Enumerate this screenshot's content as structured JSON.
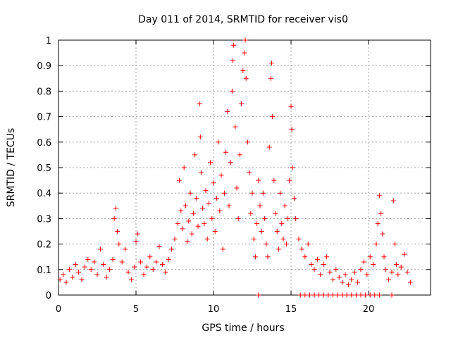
{
  "chart_data": {
    "type": "scatter",
    "title": "Day 011 of 2014, SRMTID for receiver vis0",
    "xlabel": "GPS time / hours",
    "ylabel": "SRMTID / TECUs",
    "xlim": [
      0,
      24
    ],
    "ylim": [
      0,
      1
    ],
    "x_ticks": [
      0,
      5,
      10,
      15,
      20
    ],
    "y_ticks": [
      0,
      0.1,
      0.2,
      0.3,
      0.4,
      0.5,
      0.6,
      0.7,
      0.8,
      0.9,
      1
    ],
    "x_tick_labels": [
      "0",
      "5",
      "10",
      "15",
      "20"
    ],
    "y_tick_labels": [
      "0",
      "0.1",
      "0.2",
      "0.3",
      "0.4",
      "0.5",
      "0.6",
      "0.7",
      "0.8",
      "0.9",
      "1"
    ],
    "grid": true,
    "marker": "+",
    "color": "#ff0000",
    "series": [
      {
        "name": "SRMTID",
        "points": [
          [
            0.1,
            0.06
          ],
          [
            0.3,
            0.08
          ],
          [
            0.5,
            0.05
          ],
          [
            0.7,
            0.1
          ],
          [
            0.9,
            0.07
          ],
          [
            1.1,
            0.12
          ],
          [
            1.3,
            0.09
          ],
          [
            1.5,
            0.06
          ],
          [
            1.7,
            0.11
          ],
          [
            1.9,
            0.14
          ],
          [
            2.1,
            0.1
          ],
          [
            2.3,
            0.13
          ],
          [
            2.5,
            0.08
          ],
          [
            2.7,
            0.18
          ],
          [
            2.9,
            0.12
          ],
          [
            3.1,
            0.07
          ],
          [
            3.3,
            0.1
          ],
          [
            3.5,
            0.14
          ],
          [
            3.6,
            0.3
          ],
          [
            3.7,
            0.34
          ],
          [
            3.8,
            0.25
          ],
          [
            3.9,
            0.2
          ],
          [
            4.1,
            0.13
          ],
          [
            4.3,
            0.18
          ],
          [
            4.5,
            0.09
          ],
          [
            4.7,
            0.06
          ],
          [
            4.9,
            0.11
          ],
          [
            5.0,
            0.21
          ],
          [
            5.1,
            0.24
          ],
          [
            5.3,
            0.13
          ],
          [
            5.5,
            0.08
          ],
          [
            5.7,
            0.11
          ],
          [
            5.9,
            0.15
          ],
          [
            6.1,
            0.1
          ],
          [
            6.3,
            0.13
          ],
          [
            6.5,
            0.19
          ],
          [
            6.7,
            0.12
          ],
          [
            6.9,
            0.09
          ],
          [
            7.1,
            0.14
          ],
          [
            7.3,
            0.18
          ],
          [
            7.5,
            0.22
          ],
          [
            7.7,
            0.28
          ],
          [
            7.8,
            0.45
          ],
          [
            7.9,
            0.33
          ],
          [
            8.0,
            0.26
          ],
          [
            8.1,
            0.5
          ],
          [
            8.2,
            0.35
          ],
          [
            8.3,
            0.21
          ],
          [
            8.4,
            0.29
          ],
          [
            8.5,
            0.4
          ],
          [
            8.6,
            0.24
          ],
          [
            8.7,
            0.32
          ],
          [
            8.8,
            0.55
          ],
          [
            8.9,
            0.38
          ],
          [
            9.0,
            0.27
          ],
          [
            9.1,
            0.75
          ],
          [
            9.15,
            0.62
          ],
          [
            9.2,
            0.48
          ],
          [
            9.3,
            0.34
          ],
          [
            9.4,
            0.28
          ],
          [
            9.5,
            0.41
          ],
          [
            9.6,
            0.22
          ],
          [
            9.7,
            0.36
          ],
          [
            9.8,
            0.52
          ],
          [
            9.9,
            0.3
          ],
          [
            10.0,
            0.44
          ],
          [
            10.1,
            0.25
          ],
          [
            10.2,
            0.38
          ],
          [
            10.3,
            0.6
          ],
          [
            10.4,
            0.33
          ],
          [
            10.5,
            0.47
          ],
          [
            10.6,
            0.18
          ],
          [
            10.7,
            0.4
          ],
          [
            10.8,
            0.56
          ],
          [
            10.9,
            0.72
          ],
          [
            11.0,
            0.35
          ],
          [
            11.1,
            0.52
          ],
          [
            11.2,
            0.8
          ],
          [
            11.25,
            0.92
          ],
          [
            11.3,
            0.98
          ],
          [
            11.4,
            0.66
          ],
          [
            11.5,
            0.42
          ],
          [
            11.6,
            0.3
          ],
          [
            11.7,
            0.55
          ],
          [
            11.8,
            0.75
          ],
          [
            11.9,
            0.88
          ],
          [
            12.0,
            0.95
          ],
          [
            12.05,
            1.0
          ],
          [
            12.1,
            0.85
          ],
          [
            12.2,
            0.6
          ],
          [
            12.3,
            0.48
          ],
          [
            12.4,
            0.32
          ],
          [
            12.5,
            0.4
          ],
          [
            12.6,
            0.22
          ],
          [
            12.7,
            0.15
          ],
          [
            12.8,
            0.28
          ],
          [
            12.9,
            0.45
          ],
          [
            13.0,
            0.35
          ],
          [
            13.1,
            0.25
          ],
          [
            13.2,
            0.4
          ],
          [
            13.3,
            0.3
          ],
          [
            13.4,
            0.2
          ],
          [
            13.5,
            0.15
          ],
          [
            13.6,
            0.58
          ],
          [
            13.7,
            0.85
          ],
          [
            13.75,
            0.91
          ],
          [
            13.8,
            0.7
          ],
          [
            13.9,
            0.45
          ],
          [
            14.0,
            0.32
          ],
          [
            14.1,
            0.25
          ],
          [
            14.2,
            0.18
          ],
          [
            14.3,
            0.4
          ],
          [
            14.4,
            0.28
          ],
          [
            14.5,
            0.22
          ],
          [
            14.6,
            0.35
          ],
          [
            14.7,
            0.2
          ],
          [
            14.8,
            0.3
          ],
          [
            14.9,
            0.45
          ],
          [
            15.0,
            0.74
          ],
          [
            15.05,
            0.65
          ],
          [
            15.1,
            0.5
          ],
          [
            15.2,
            0.38
          ],
          [
            15.3,
            0.3
          ],
          [
            15.5,
            0.22
          ],
          [
            15.7,
            0.18
          ],
          [
            15.9,
            0.15
          ],
          [
            16.1,
            0.2
          ],
          [
            16.3,
            0.12
          ],
          [
            16.5,
            0.1
          ],
          [
            16.7,
            0.14
          ],
          [
            16.9,
            0.08
          ],
          [
            17.1,
            0.12
          ],
          [
            17.3,
            0.15
          ],
          [
            17.5,
            0.09
          ],
          [
            17.7,
            0.06
          ],
          [
            17.9,
            0.1
          ],
          [
            18.1,
            0.07
          ],
          [
            18.3,
            0.05
          ],
          [
            18.5,
            0.08
          ],
          [
            18.7,
            0.04
          ],
          [
            18.9,
            0.06
          ],
          [
            19.1,
            0.09
          ],
          [
            19.3,
            0.05
          ],
          [
            19.5,
            0.1
          ],
          [
            19.7,
            0.13
          ],
          [
            19.9,
            0.08
          ],
          [
            20.1,
            0.15
          ],
          [
            20.3,
            0.12
          ],
          [
            20.5,
            0.2
          ],
          [
            20.6,
            0.28
          ],
          [
            20.7,
            0.39
          ],
          [
            20.8,
            0.32
          ],
          [
            20.9,
            0.24
          ],
          [
            21.0,
            0.15
          ],
          [
            21.1,
            0.1
          ],
          [
            21.3,
            0.06
          ],
          [
            21.5,
            0.09
          ],
          [
            21.6,
            0.37
          ],
          [
            21.7,
            0.2
          ],
          [
            21.8,
            0.12
          ],
          [
            21.9,
            0.08
          ],
          [
            22.1,
            0.11
          ],
          [
            22.3,
            0.16
          ],
          [
            22.5,
            0.09
          ],
          [
            22.7,
            0.05
          ],
          [
            12.9,
            0.0
          ],
          [
            15.6,
            0.0
          ],
          [
            15.9,
            0.0
          ],
          [
            16.2,
            0.0
          ],
          [
            16.5,
            0.0
          ],
          [
            16.8,
            0.0
          ],
          [
            17.1,
            0.0
          ],
          [
            17.4,
            0.0
          ],
          [
            17.7,
            0.0
          ],
          [
            18.0,
            0.0
          ],
          [
            18.3,
            0.0
          ],
          [
            18.6,
            0.0
          ],
          [
            18.9,
            0.0
          ],
          [
            19.2,
            0.0
          ],
          [
            19.5,
            0.0
          ],
          [
            19.8,
            0.0
          ],
          [
            20.1,
            0.0
          ],
          [
            20.4,
            0.0
          ],
          [
            20.7,
            0.0
          ],
          [
            21.5,
            0.0
          ]
        ]
      }
    ]
  }
}
